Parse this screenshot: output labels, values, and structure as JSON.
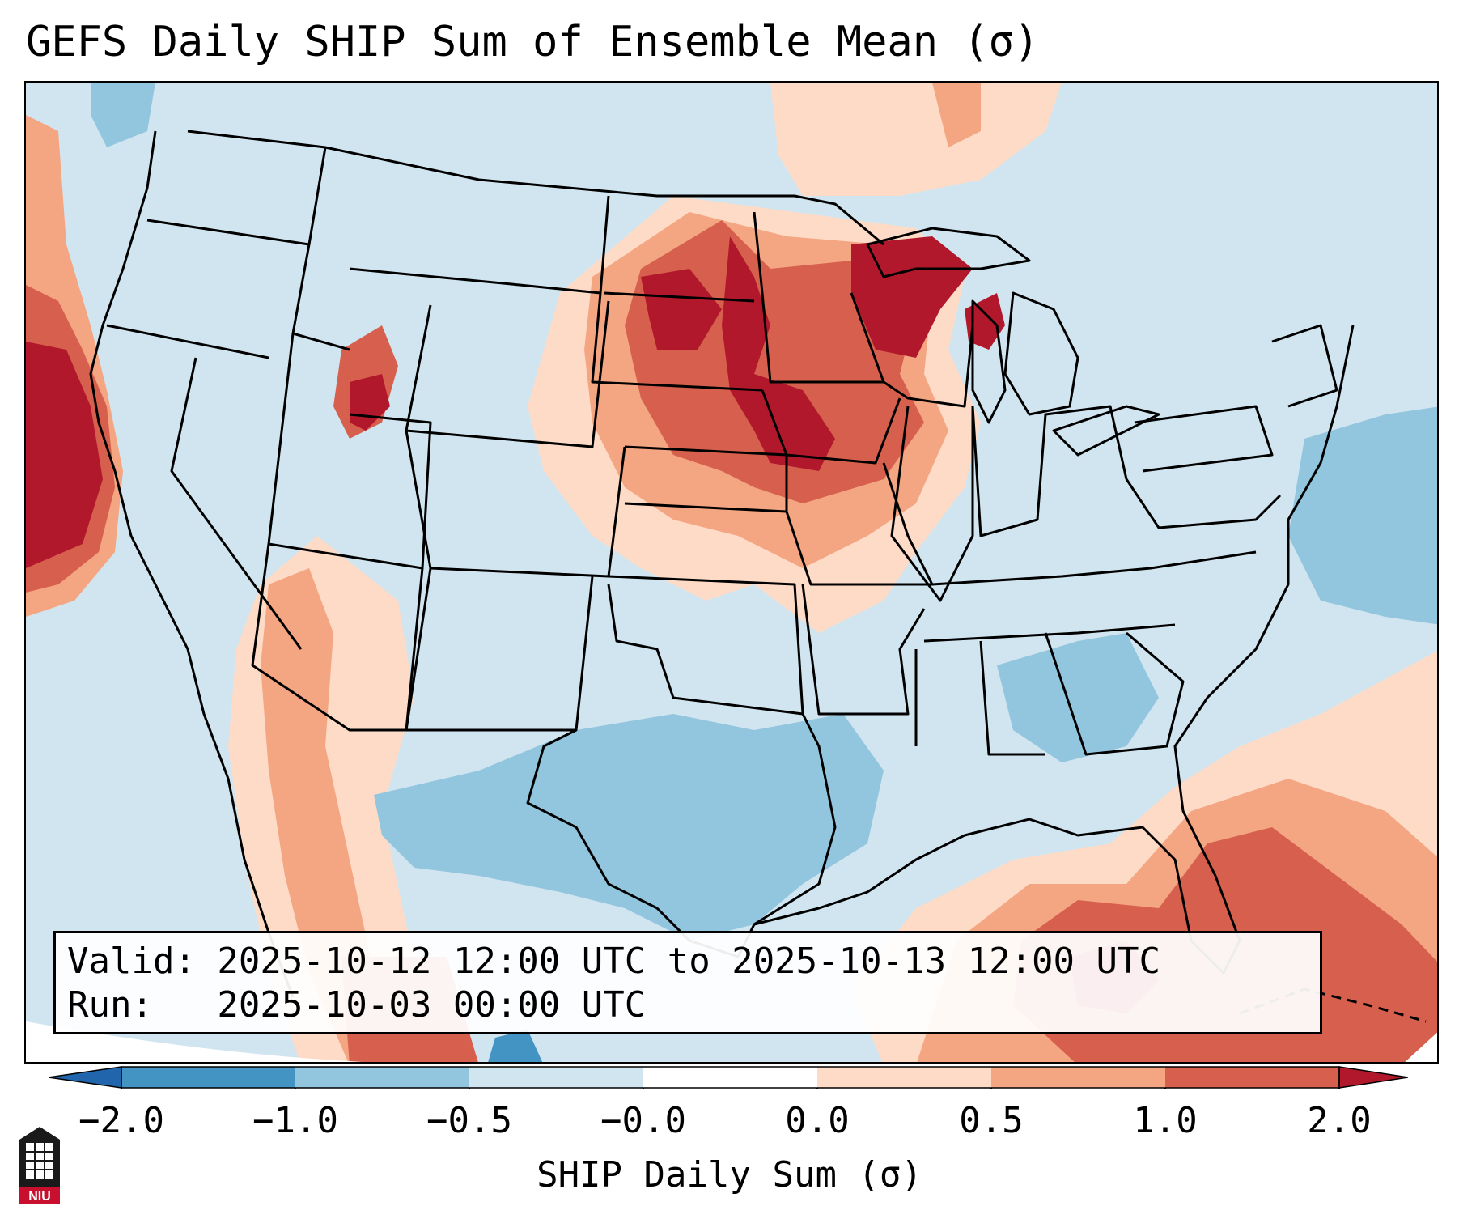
{
  "title": "GEFS Daily SHIP Sum of Ensemble Mean (σ)",
  "info": {
    "valid_text": "Valid: 2025-10-12 12:00 UTC to 2025-10-13 12:00 UTC",
    "run_text": "Run:   2025-10-03 00:00 UTC"
  },
  "colorbar": {
    "label": "SHIP Daily Sum (σ)",
    "tick_labels": [
      "−2.0",
      "−1.0",
      "−0.5",
      "−0.0",
      "0.0",
      "0.5",
      "1.0",
      "2.0"
    ],
    "colors": [
      "#4393c3",
      "#92c5de",
      "#d1e5f0",
      "#ffffff",
      "#fddbc7",
      "#f4a582",
      "#d6604d"
    ],
    "extend_low_color": "#2166ac",
    "extend_high_color": "#b2182b"
  },
  "logo": {
    "text": "NIU",
    "icon": "niu-tower-logo-icon"
  },
  "map_colors": {
    "background": "#d1e5f0",
    "light_blue": "#92c5de",
    "blue": "#4393c3",
    "light_red": "#fddbc7",
    "salmon": "#f4a582",
    "red": "#d6604d",
    "dark_red": "#b2182b"
  }
}
